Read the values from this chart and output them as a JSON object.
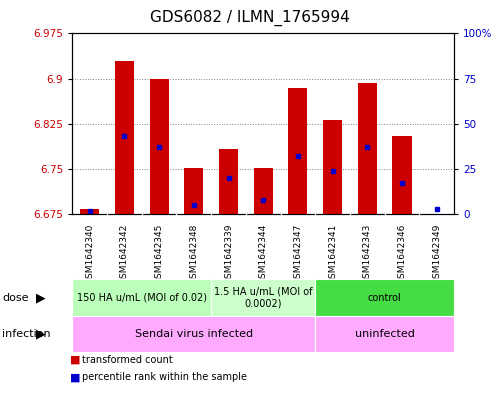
{
  "title": "GDS6082 / ILMN_1765994",
  "samples": [
    "GSM1642340",
    "GSM1642342",
    "GSM1642345",
    "GSM1642348",
    "GSM1642339",
    "GSM1642344",
    "GSM1642347",
    "GSM1642341",
    "GSM1642343",
    "GSM1642346",
    "GSM1642349"
  ],
  "transformed_counts": [
    6.683,
    6.93,
    6.9,
    6.752,
    6.784,
    6.751,
    6.885,
    6.832,
    6.893,
    6.805,
    6.667
  ],
  "percentile_ranks": [
    2,
    43,
    37,
    5,
    20,
    8,
    32,
    24,
    37,
    17,
    3
  ],
  "ylim_left": [
    6.675,
    6.975
  ],
  "ylim_right": [
    0,
    100
  ],
  "yticks_left": [
    6.675,
    6.75,
    6.825,
    6.9,
    6.975
  ],
  "yticks_right": [
    0,
    25,
    50,
    75,
    100
  ],
  "ytick_labels_left": [
    "6.675",
    "6.75",
    "6.825",
    "6.9",
    "6.975"
  ],
  "ytick_labels_right": [
    "0",
    "25",
    "50",
    "75",
    "100%"
  ],
  "bar_color": "#cc0000",
  "blue_color": "#0000cc",
  "baseline": 6.675,
  "dose_groups": [
    {
      "label": "150 HA u/mL (MOI of 0.02)",
      "start": 0,
      "end": 3,
      "color": "#bbffbb"
    },
    {
      "label": "1.5 HA u/mL (MOI of\n0.0002)",
      "start": 4,
      "end": 6,
      "color": "#ccffcc"
    },
    {
      "label": "control",
      "start": 7,
      "end": 10,
      "color": "#44dd44"
    }
  ],
  "infection_groups": [
    {
      "label": "Sendai virus infected",
      "start": 0,
      "end": 6,
      "color": "#ffaaff"
    },
    {
      "label": "uninfected",
      "start": 7,
      "end": 10,
      "color": "#ffaaff"
    }
  ],
  "legend_items": [
    {
      "label": "transformed count",
      "color": "#cc0000"
    },
    {
      "label": "percentile rank within the sample",
      "color": "#0000cc"
    }
  ],
  "bar_width": 0.55,
  "grid_color": "black",
  "grid_alpha": 0.5,
  "plot_bg": "white",
  "title_fontsize": 11,
  "axis_label_color_left": "#cc0000",
  "axis_label_color_right": "#0000cc",
  "xtick_bg": "#d8d8d8",
  "dose_font": 7,
  "infection_font": 8,
  "dose_label_font": 8,
  "infection_label_font": 8
}
